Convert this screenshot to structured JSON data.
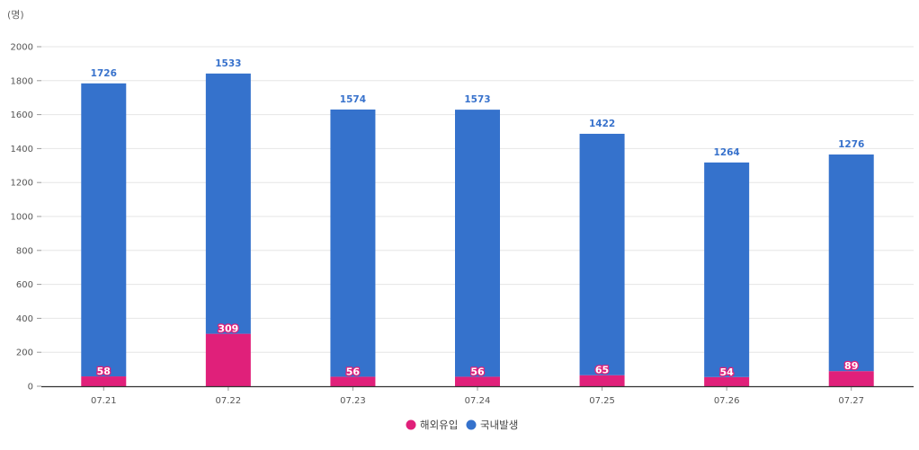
{
  "unit_label": "(명)",
  "colors": {
    "overseas": "#e0207a",
    "domestic": "#3572cc",
    "total_label": "#3872cc",
    "grid": "#e6e6e6",
    "axis": "#333333"
  },
  "chart_data": {
    "type": "bar",
    "stacked": true,
    "categories": [
      "07.21",
      "07.22",
      "07.23",
      "07.24",
      "07.25",
      "07.26",
      "07.27"
    ],
    "series": [
      {
        "name": "해외유입",
        "values": [
          58,
          309,
          56,
          56,
          65,
          54,
          89
        ]
      },
      {
        "name": "국내발생",
        "values": [
          1726,
          1533,
          1574,
          1573,
          1422,
          1264,
          1276
        ]
      }
    ],
    "ylim": [
      0,
      2000
    ],
    "yticks": [
      0,
      200,
      400,
      600,
      800,
      1000,
      1200,
      1400,
      1600,
      1800,
      2000
    ],
    "grid": true,
    "legend_position": "bottom-center"
  }
}
